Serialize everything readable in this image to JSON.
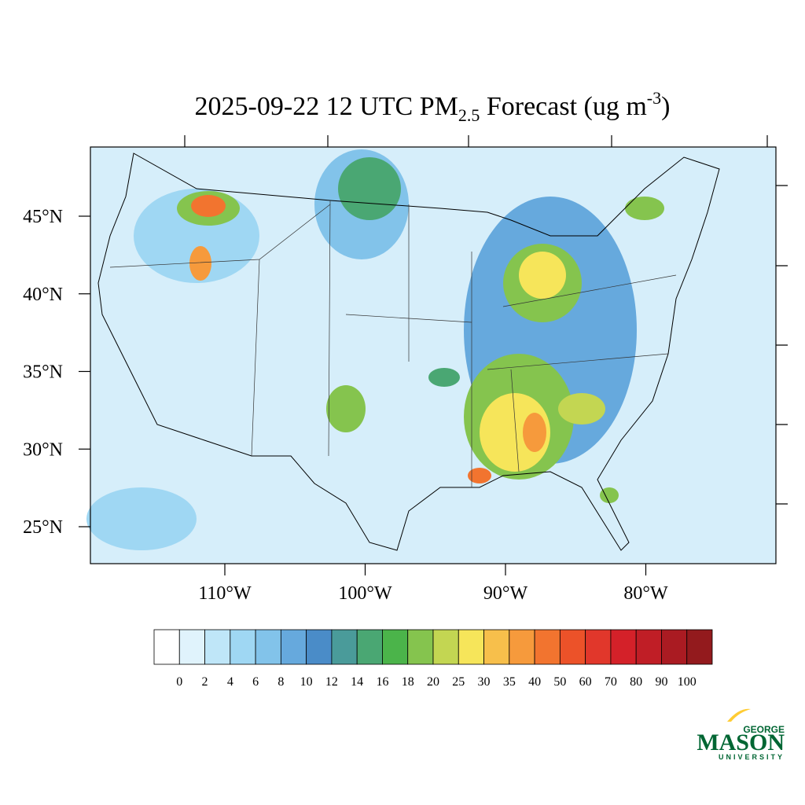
{
  "title": {
    "main": "2025-09-22 12 UTC PM",
    "subscript": "2.5",
    "middle": " Forecast (ug m",
    "superscript": "-3",
    "end": ")"
  },
  "map": {
    "lat_labels": [
      {
        "value": 45,
        "label": "45°N"
      },
      {
        "value": 40,
        "label": "40°N"
      },
      {
        "value": 35,
        "label": "35°N"
      },
      {
        "value": 30,
        "label": "30°N"
      },
      {
        "value": 25,
        "label": "25°N"
      }
    ],
    "lon_labels": [
      {
        "value": -110,
        "label": "110°W"
      },
      {
        "value": -100,
        "label": "100°W"
      },
      {
        "value": -90,
        "label": "90°W"
      },
      {
        "value": -80,
        "label": "80°W"
      }
    ]
  },
  "colorbar": {
    "levels": [
      0,
      2,
      4,
      6,
      8,
      10,
      12,
      14,
      16,
      18,
      20,
      25,
      30,
      35,
      40,
      50,
      60,
      70,
      80,
      90,
      100
    ],
    "colors": [
      "#ffffff",
      "#e0f3fc",
      "#bfe6f8",
      "#9fd7f3",
      "#82c3ea",
      "#66a9dd",
      "#4a8cc8",
      "#4a9b9a",
      "#4aa773",
      "#4bb44a",
      "#85c44e",
      "#c3d652",
      "#f6e55a",
      "#f7bf4b",
      "#f69a3c",
      "#f2742f",
      "#ec5229",
      "#e1372b",
      "#d42129",
      "#c01e26",
      "#aa1b22",
      "#931a1d"
    ]
  },
  "logo": {
    "top": "GEORGE",
    "name": "MASON",
    "bottom": "UNIVERSITY"
  }
}
